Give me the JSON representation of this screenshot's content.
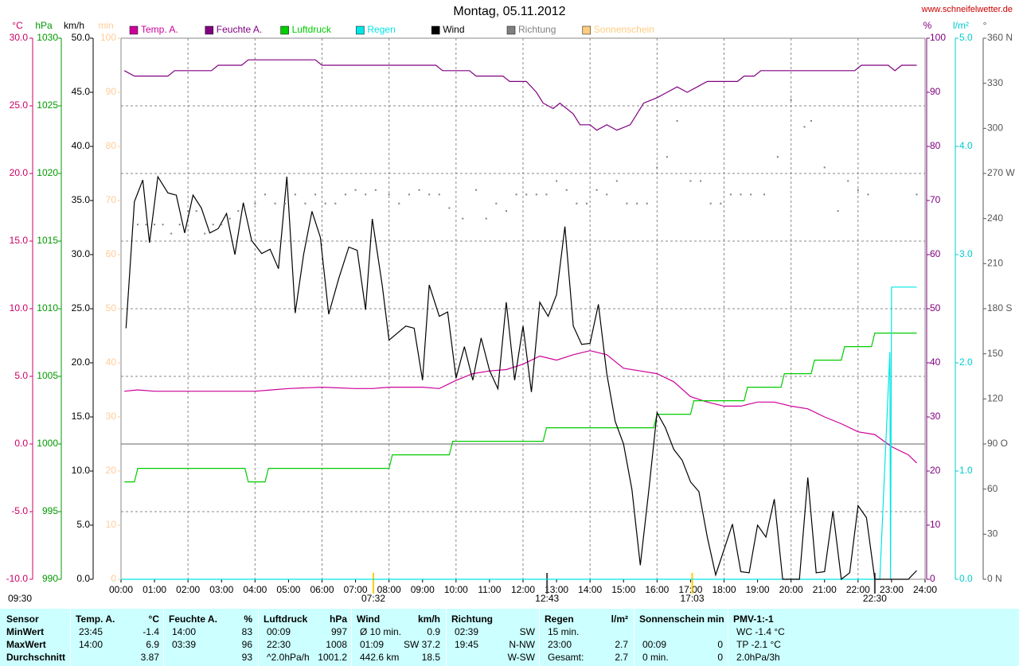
{
  "chart_data": {
    "type": "line",
    "title": "Montag, 05.11.2012",
    "source": "www.schneifelwetter.de",
    "footnote": "09:30",
    "xlim": [
      0,
      24
    ],
    "xticks": [
      {
        "value": 0,
        "label": "00:00"
      },
      {
        "value": 1,
        "label": "01:00"
      },
      {
        "value": 2,
        "label": "02:00"
      },
      {
        "value": 3,
        "label": "03:00"
      },
      {
        "value": 4,
        "label": "04:00"
      },
      {
        "value": 5,
        "label": "05:00"
      },
      {
        "value": 6,
        "label": "06:00"
      },
      {
        "value": 7,
        "label": "07:00"
      },
      {
        "value": 8,
        "label": "08:00"
      },
      {
        "value": 9,
        "label": "09:00"
      },
      {
        "value": 10,
        "label": "10:00"
      },
      {
        "value": 11,
        "label": "11:00"
      },
      {
        "value": 12,
        "label": "12:00"
      },
      {
        "value": 13,
        "label": "13:00"
      },
      {
        "value": 14,
        "label": "14:00"
      },
      {
        "value": 15,
        "label": "15:00"
      },
      {
        "value": 16,
        "label": "16:00"
      },
      {
        "value": 17,
        "label": "17:00"
      },
      {
        "value": 18,
        "label": "18:00"
      },
      {
        "value": 19,
        "label": "19:00"
      },
      {
        "value": 20,
        "label": "20:00"
      },
      {
        "value": 21,
        "label": "21:00"
      },
      {
        "value": 22,
        "label": "22:00"
      },
      {
        "value": 23,
        "label": "23:00"
      },
      {
        "value": 24,
        "label": "24:00"
      }
    ],
    "grid": true,
    "events": [
      "07:32",
      "12:43",
      "17:03",
      "22:30"
    ],
    "axes": [
      {
        "id": "temp",
        "unit": "°C",
        "side": "left",
        "color": "#cc0066",
        "lim": [
          -10,
          30
        ],
        "ticks": [
          {
            "value": -10,
            "label": "-10.0"
          },
          {
            "value": -5,
            "label": "-5.0"
          },
          {
            "value": 0,
            "label": "0.0"
          },
          {
            "value": 5,
            "label": "5.0"
          },
          {
            "value": 10,
            "label": "10.0"
          },
          {
            "value": 15,
            "label": "15.0"
          },
          {
            "value": 20,
            "label": "20.0"
          },
          {
            "value": 25,
            "label": "25.0"
          },
          {
            "value": 30,
            "label": "30.0"
          }
        ]
      },
      {
        "id": "hpa",
        "unit": "hPa",
        "side": "left",
        "color": "#009900",
        "lim": [
          990,
          1030
        ],
        "ticks": [
          990,
          995,
          1000,
          1005,
          1010,
          1015,
          1020,
          1025,
          1030
        ]
      },
      {
        "id": "kmh",
        "unit": "km/h",
        "side": "left",
        "color": "#000000",
        "lim": [
          0,
          50
        ],
        "ticks": [
          {
            "value": 0,
            "label": "0.0"
          },
          {
            "value": 5,
            "label": "5.0"
          },
          {
            "value": 10,
            "label": "10.0"
          },
          {
            "value": 15,
            "label": "15.0"
          },
          {
            "value": 20,
            "label": "20.0"
          },
          {
            "value": 25,
            "label": "25.0"
          },
          {
            "value": 30,
            "label": "30.0"
          },
          {
            "value": 35,
            "label": "35.0"
          },
          {
            "value": 40,
            "label": "40.0"
          },
          {
            "value": 45,
            "label": "45.0"
          },
          {
            "value": 50,
            "label": "50.0"
          }
        ]
      },
      {
        "id": "min",
        "unit": "min",
        "side": "left",
        "color": "#ffcc99",
        "lim": [
          0,
          100
        ],
        "ticks": [
          0,
          10,
          20,
          30,
          40,
          50,
          60,
          70,
          80,
          90,
          100
        ]
      },
      {
        "id": "pct",
        "unit": "%",
        "side": "right",
        "color": "#800080",
        "lim": [
          0,
          100
        ],
        "ticks": [
          0,
          10,
          20,
          30,
          40,
          50,
          60,
          70,
          80,
          90,
          100
        ]
      },
      {
        "id": "rain",
        "unit": "l/m²",
        "side": "right",
        "color": "#00cccc",
        "lim": [
          0,
          5
        ],
        "ticks": [
          {
            "value": 0,
            "label": "0.0"
          },
          {
            "value": 1,
            "label": "1.0"
          },
          {
            "value": 2,
            "label": "2.0"
          },
          {
            "value": 3,
            "label": "3.0"
          },
          {
            "value": 4,
            "label": "4.0"
          },
          {
            "value": 5,
            "label": "5.0"
          }
        ]
      },
      {
        "id": "deg",
        "unit": "°",
        "side": "right",
        "color": "#555555",
        "lim": [
          0,
          360
        ],
        "ticks": [
          {
            "value": 0,
            "label": "0  N"
          },
          30,
          60,
          {
            "value": 90,
            "label": "90  O"
          },
          120,
          150,
          {
            "value": 180,
            "label": "180  S"
          },
          210,
          240,
          {
            "value": 270,
            "label": "270  W"
          },
          300,
          330,
          {
            "value": 360,
            "label": "360  N"
          }
        ]
      }
    ],
    "series": [
      {
        "name": "Temp. A.",
        "color": "#cc0099",
        "axis": "temp",
        "x": [
          0.1,
          0.5,
          1,
          2,
          3,
          4,
          4.5,
          5,
          6,
          7,
          7.5,
          8,
          9,
          9.5,
          10,
          10.5,
          11,
          11.5,
          12,
          12.5,
          13,
          13.5,
          14,
          14.5,
          15,
          15.5,
          16,
          16.5,
          17,
          17.5,
          18,
          18.5,
          19,
          19.5,
          20,
          20.5,
          21,
          21.5,
          22,
          22.5,
          23,
          23.5,
          23.75
        ],
        "values": [
          3.9,
          4.0,
          3.9,
          3.9,
          3.9,
          3.9,
          4.0,
          4.1,
          4.2,
          4.1,
          4.1,
          4.2,
          4.2,
          4.1,
          4.7,
          5.2,
          5.4,
          5.5,
          5.9,
          6.5,
          6.2,
          6.6,
          6.9,
          6.6,
          5.6,
          5.4,
          5.2,
          4.6,
          3.5,
          3.1,
          2.8,
          2.8,
          3.1,
          3.1,
          2.8,
          2.6,
          2.0,
          1.5,
          0.9,
          0.7,
          -0.2,
          -0.8,
          -1.4
        ]
      },
      {
        "name": "Feuchte A.",
        "color": "#800080",
        "axis": "pct",
        "x": [
          0.1,
          0.4,
          1.4,
          1.6,
          2.7,
          2.9,
          3.6,
          3.8,
          5.8,
          6.0,
          9.4,
          9.6,
          10.4,
          10.6,
          11.4,
          11.6,
          12.1,
          12.4,
          12.6,
          12.9,
          13.1,
          13.5,
          13.7,
          14,
          14.2,
          14.5,
          14.8,
          15.2,
          15.6,
          16,
          16.3,
          16.6,
          16.9,
          17.2,
          17.5,
          18.4,
          18.6,
          18.9,
          19.1,
          21.9,
          22.1,
          22.9,
          23.1,
          23.3,
          23.75
        ],
        "values": [
          94,
          93,
          93,
          94,
          94,
          95,
          95,
          96,
          96,
          95,
          95,
          94,
          94,
          93,
          93,
          92,
          92,
          90,
          88,
          87,
          88,
          86,
          84,
          84,
          83,
          84,
          83,
          84,
          88,
          89,
          90,
          91,
          90,
          91,
          92,
          92,
          93,
          93,
          94,
          94,
          95,
          95,
          94,
          95,
          95
        ]
      },
      {
        "name": "Luftdruck",
        "color": "#00cc00",
        "axis": "hpa",
        "x": [
          0.1,
          0.4,
          0.5,
          3.7,
          3.8,
          4.3,
          4.4,
          8.0,
          8.1,
          9.8,
          9.9,
          12.6,
          12.7,
          15.9,
          16.0,
          17.0,
          17.1,
          18.6,
          18.7,
          19.7,
          19.8,
          20.6,
          20.7,
          21.5,
          21.6,
          22.4,
          22.5,
          23.75
        ],
        "values": [
          997.2,
          997.2,
          998.2,
          998.2,
          997.2,
          997.2,
          998.2,
          998.2,
          999.2,
          999.2,
          1000.2,
          1000.2,
          1001.2,
          1001.2,
          1002.2,
          1002.2,
          1003.2,
          1003.2,
          1004.2,
          1004.2,
          1005.2,
          1005.2,
          1006.2,
          1006.2,
          1007.2,
          1007.2,
          1008.2,
          1008.2
        ]
      },
      {
        "name": "Regen",
        "color": "#00e5e5",
        "axis": "rain",
        "x": [
          0,
          22.65,
          22.95,
          22.97,
          23.0,
          23.75
        ],
        "values": [
          0,
          0,
          2.1,
          0,
          2.7,
          2.7
        ]
      },
      {
        "name": "Wind",
        "color": "#000000",
        "axis": "kmh",
        "x": [
          0.15,
          0.4,
          0.65,
          0.85,
          1.1,
          1.4,
          1.65,
          1.9,
          2.15,
          2.4,
          2.65,
          2.9,
          3.15,
          3.4,
          3.65,
          3.9,
          4.2,
          4.45,
          4.7,
          4.95,
          5.2,
          5.45,
          5.7,
          5.95,
          6.2,
          6.5,
          6.8,
          7.05,
          7.3,
          7.5,
          7.8,
          8.0,
          8.5,
          8.75,
          9.0,
          9.2,
          9.5,
          9.75,
          10.0,
          10.25,
          10.5,
          10.75,
          11.0,
          11.25,
          11.5,
          11.75,
          12.0,
          12.25,
          12.5,
          12.75,
          13.0,
          13.25,
          13.5,
          13.75,
          14.0,
          14.25,
          14.5,
          14.75,
          15.0,
          15.25,
          15.5,
          15.75,
          16.0,
          16.25,
          16.5,
          16.75,
          17.0,
          17.25,
          17.5,
          17.75,
          18.25,
          18.5,
          18.75,
          19.0,
          19.25,
          19.5,
          19.75,
          20.25,
          20.5,
          20.75,
          21.0,
          21.25,
          21.5,
          21.75,
          22.0,
          22.25,
          22.5,
          23.5,
          23.75
        ],
        "values": [
          23.2,
          34.9,
          36.9,
          31.1,
          37.2,
          35.7,
          35.5,
          32.0,
          35.5,
          34.3,
          32.0,
          32.4,
          33.8,
          30.0,
          34.8,
          31.3,
          30.1,
          30.5,
          28.7,
          37.2,
          24.6,
          30.0,
          34.0,
          31.6,
          24.5,
          27.8,
          30.7,
          30.4,
          24.9,
          33.3,
          27.1,
          22.1,
          23.4,
          23.2,
          18.4,
          27.2,
          24.3,
          24.7,
          18.6,
          21.5,
          18.4,
          22.3,
          19.3,
          17.6,
          25.6,
          18.4,
          23.4,
          17.3,
          25.6,
          24.3,
          26.3,
          32.6,
          23.4,
          21.7,
          21.8,
          25.4,
          19.0,
          14.6,
          12.5,
          8.3,
          1.3,
          8.1,
          15.4,
          14.0,
          12.0,
          11.0,
          9.0,
          8.1,
          3.9,
          0.4,
          5.1,
          0.7,
          0.6,
          5.0,
          3.9,
          7.4,
          0,
          0,
          9.4,
          0.6,
          0.7,
          6.3,
          0,
          0.6,
          6.8,
          5.7,
          0,
          0,
          0.8
        ]
      },
      {
        "name": "Richtung",
        "color": "#808080",
        "axis": "deg",
        "type": "scatter",
        "x": [
          0.5,
          0.75,
          1.0,
          1.25,
          1.5,
          1.75,
          2.0,
          2.25,
          2.5,
          2.75,
          3.0,
          3.25,
          3.5,
          4.0,
          4.3,
          4.6,
          4.9,
          5.2,
          5.5,
          5.8,
          6.1,
          6.4,
          6.7,
          7.0,
          7.3,
          7.6,
          8.0,
          8.3,
          8.6,
          8.9,
          9.2,
          9.5,
          9.8,
          10.2,
          10.6,
          10.9,
          11.2,
          11.5,
          11.8,
          12.1,
          12.4,
          12.7,
          13.0,
          13.3,
          13.6,
          13.9,
          14.2,
          14.5,
          14.8,
          15.1,
          15.4,
          15.7,
          16.0,
          16.3,
          16.6,
          17.0,
          17.3,
          17.6,
          17.9,
          18.2,
          18.5,
          18.8,
          19.2,
          19.6,
          20.0,
          20.4,
          20.6,
          21.0,
          21.4,
          21.7,
          22.0,
          22.3,
          23.75
        ],
        "values": [
          236,
          236,
          236,
          236,
          230,
          236,
          245,
          245,
          230,
          236,
          236,
          240,
          245,
          250,
          256,
          250,
          250,
          256,
          250,
          256,
          250,
          250,
          256,
          259,
          256,
          259,
          256,
          250,
          256,
          259,
          256,
          256,
          247,
          240,
          259,
          240,
          250,
          245,
          256,
          256,
          256,
          256,
          265,
          259,
          250,
          250,
          259,
          256,
          265,
          250,
          250,
          250,
          274,
          281,
          305,
          265,
          265,
          250,
          250,
          256,
          256,
          256,
          256,
          281,
          319,
          301,
          305,
          274,
          245,
          265,
          259,
          256,
          256
        ]
      },
      {
        "name": "Sonnenschein",
        "color": "#ffcc80",
        "axis": "min"
      }
    ]
  },
  "table": {
    "corner": "Sensor",
    "row_labels": {
      "min": "MinWert",
      "max": "MaxWert",
      "avg": "Durchschnitt"
    },
    "columns": [
      {
        "header": "Temp. A.",
        "unit": "°C",
        "min": {
          "time": "23:45",
          "value": "-1.4"
        },
        "max": {
          "time": "14:00",
          "value": "6.9"
        },
        "avg": {
          "value": "3.87"
        }
      },
      {
        "header": "Feuchte A.",
        "unit": "%",
        "min": {
          "time": "14:00",
          "value": "83"
        },
        "max": {
          "time": "03:39",
          "value": "96"
        },
        "avg": {
          "value": "93"
        }
      },
      {
        "header": "Luftdruck",
        "unit": "hPa",
        "min": {
          "time": "00:09",
          "value": "997"
        },
        "max": {
          "time": "22:30",
          "value": "1008"
        },
        "avg": {
          "time": "^2.0hPa/h",
          "value": "1001.2"
        }
      },
      {
        "header": "Wind",
        "unit": "km/h",
        "min": {
          "time": "Ø 10 min.",
          "value": "0.9"
        },
        "max": {
          "time": "01:09",
          "value": "SW 37.2"
        },
        "avg": {
          "time": "442.6 km",
          "value": "18.5"
        }
      },
      {
        "header": "Richtung",
        "min": {
          "time": "02:39",
          "value": "SW"
        },
        "max": {
          "time": "19:45",
          "value": "N-NW"
        },
        "avg": {
          "value": "W-SW"
        }
      },
      {
        "header": "Regen",
        "unit": "l/m²",
        "min": {
          "time": "15 min."
        },
        "max": {
          "time": "23:00",
          "value": "2.7"
        },
        "avg": {
          "time": "Gesamt:",
          "value": "2.7"
        }
      },
      {
        "header": "Sonnenschein min",
        "max": {
          "time": "00:09",
          "value": "0"
        },
        "avg": {
          "time": "0 min.",
          "value": "0"
        }
      },
      {
        "header": "PMV-1:-1",
        "min": {
          "time": "WC -1.4 °C"
        },
        "max": {
          "time": "TP -2.1 °C"
        },
        "avg": {
          "time": "2.0hPa/3h"
        }
      }
    ]
  }
}
